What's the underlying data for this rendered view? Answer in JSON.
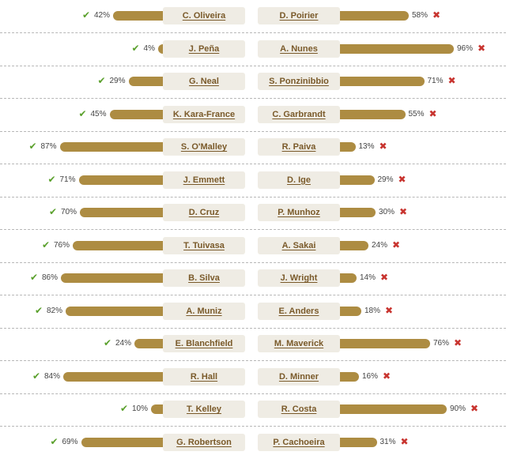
{
  "icons": {
    "winner": "check-icon",
    "loser": "cross-icon"
  },
  "colors": {
    "bar": "#ad8c42",
    "name_bg": "#efece4",
    "name_text": "#7a5a2a",
    "check": "#5aa02c",
    "cross": "#c8342f"
  },
  "symbols": {
    "check": "✔",
    "cross": "✖"
  },
  "fights": [
    {
      "left": {
        "name": "C. Oliveira",
        "pct": 42,
        "pct_label": "42%"
      },
      "right": {
        "name": "D. Poirier",
        "pct": 58,
        "pct_label": "58%"
      }
    },
    {
      "left": {
        "name": "J. Peña",
        "pct": 4,
        "pct_label": "4%"
      },
      "right": {
        "name": "A. Nunes",
        "pct": 96,
        "pct_label": "96%"
      }
    },
    {
      "left": {
        "name": "G. Neal",
        "pct": 29,
        "pct_label": "29%"
      },
      "right": {
        "name": "S. Ponzinibbio",
        "pct": 71,
        "pct_label": "71%"
      }
    },
    {
      "left": {
        "name": "K. Kara-France",
        "pct": 45,
        "pct_label": "45%"
      },
      "right": {
        "name": "C. Garbrandt",
        "pct": 55,
        "pct_label": "55%"
      }
    },
    {
      "left": {
        "name": "S. O'Malley",
        "pct": 87,
        "pct_label": "87%"
      },
      "right": {
        "name": "R. Paiva",
        "pct": 13,
        "pct_label": "13%"
      }
    },
    {
      "left": {
        "name": "J. Emmett",
        "pct": 71,
        "pct_label": "71%"
      },
      "right": {
        "name": "D. Ige",
        "pct": 29,
        "pct_label": "29%"
      }
    },
    {
      "left": {
        "name": "D. Cruz",
        "pct": 70,
        "pct_label": "70%"
      },
      "right": {
        "name": "P. Munhoz",
        "pct": 30,
        "pct_label": "30%"
      }
    },
    {
      "left": {
        "name": "T. Tuivasa",
        "pct": 76,
        "pct_label": "76%"
      },
      "right": {
        "name": "A. Sakai",
        "pct": 24,
        "pct_label": "24%"
      }
    },
    {
      "left": {
        "name": "B. Silva",
        "pct": 86,
        "pct_label": "86%"
      },
      "right": {
        "name": "J. Wright",
        "pct": 14,
        "pct_label": "14%"
      }
    },
    {
      "left": {
        "name": "A. Muniz",
        "pct": 82,
        "pct_label": "82%"
      },
      "right": {
        "name": "E. Anders",
        "pct": 18,
        "pct_label": "18%"
      }
    },
    {
      "left": {
        "name": "E. Blanchfield",
        "pct": 24,
        "pct_label": "24%"
      },
      "right": {
        "name": "M. Maverick",
        "pct": 76,
        "pct_label": "76%"
      }
    },
    {
      "left": {
        "name": "R. Hall",
        "pct": 84,
        "pct_label": "84%"
      },
      "right": {
        "name": "D. Minner",
        "pct": 16,
        "pct_label": "16%"
      }
    },
    {
      "left": {
        "name": "T. Kelley",
        "pct": 10,
        "pct_label": "10%"
      },
      "right": {
        "name": "R. Costa",
        "pct": 90,
        "pct_label": "90%"
      }
    },
    {
      "left": {
        "name": "G. Robertson",
        "pct": 69,
        "pct_label": "69%"
      },
      "right": {
        "name": "P. Cachoeira",
        "pct": 31,
        "pct_label": "31%"
      }
    }
  ]
}
